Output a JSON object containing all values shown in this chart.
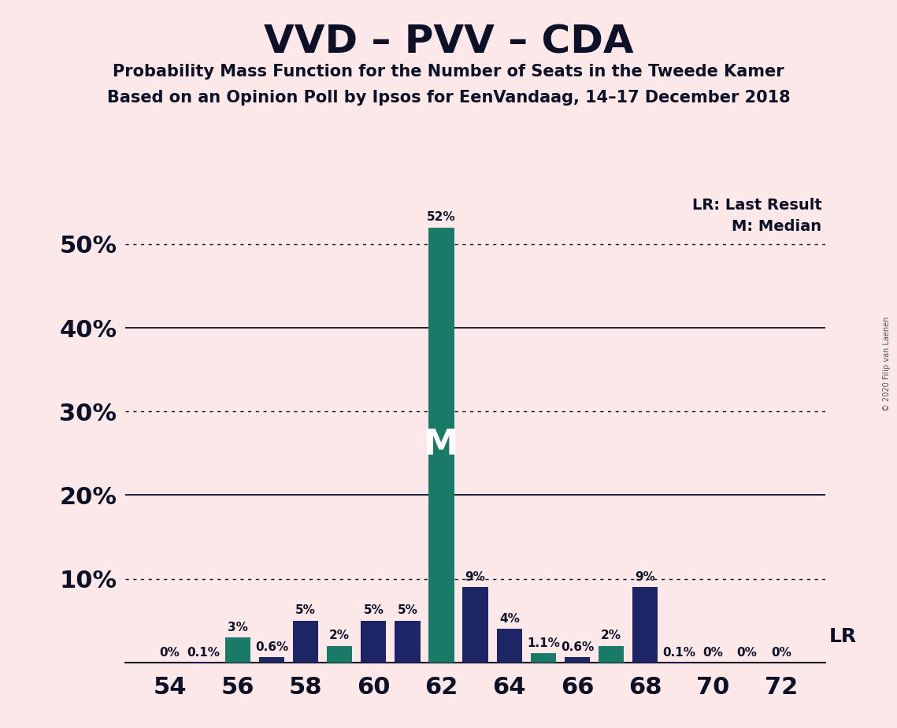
{
  "title": "VVD – PVV – CDA",
  "subtitle1": "Probability Mass Function for the Number of Seats in the Tweede Kamer",
  "subtitle2": "Based on an Opinion Poll by Ipsos for EenVandaag, 14–17 December 2018",
  "copyright": "© 2020 Filip van Laenen",
  "background_color": "#fce8e8",
  "navy_color": "#1e2566",
  "teal_color": "#1a7a68",
  "seats": [
    54,
    55,
    56,
    57,
    58,
    59,
    60,
    61,
    62,
    63,
    64,
    65,
    66,
    67,
    68,
    69,
    70,
    71,
    72
  ],
  "bar_colors": [
    "navy",
    "navy",
    "teal",
    "navy",
    "navy",
    "teal",
    "navy",
    "navy",
    "teal",
    "navy",
    "navy",
    "teal",
    "navy",
    "teal",
    "navy",
    "navy",
    "navy",
    "navy",
    "navy"
  ],
  "bar_values": [
    0.0,
    0.1,
    3.0,
    0.6,
    5.0,
    2.0,
    5.0,
    5.0,
    52.0,
    9.0,
    4.0,
    1.1,
    0.6,
    2.0,
    9.0,
    0.1,
    0.0,
    0.0,
    0.0
  ],
  "bar_labels": [
    "0%",
    "0.1%",
    "3%",
    "0.6%",
    "5%",
    "2%",
    "5%",
    "5%",
    "52%",
    "9%",
    "4%",
    "1.1%",
    "0.6%",
    "2%",
    "9%",
    "0.1%",
    "0%",
    "0%",
    "0%"
  ],
  "median_seat": 62,
  "lr_seat": 68,
  "legend_lr": "LR: Last Result",
  "legend_m": "M: Median",
  "lr_label": "LR",
  "m_label": "M",
  "ylim_max": 57,
  "ytick_vals": [
    0,
    10,
    20,
    30,
    40,
    50
  ],
  "ytick_labels": [
    "",
    "10%",
    "20%",
    "30%",
    "40%",
    "50%"
  ],
  "xtick_vals": [
    54,
    56,
    58,
    60,
    62,
    64,
    66,
    68,
    70,
    72
  ],
  "dotted_lines": [
    10,
    30,
    50
  ],
  "solid_lines": [
    20,
    40
  ],
  "bar_width": 0.75,
  "label_fontsize": 11,
  "ytick_fontsize": 22,
  "xtick_fontsize": 22,
  "title_fontsize": 36,
  "subtitle_fontsize": 15,
  "legend_fontsize": 14
}
